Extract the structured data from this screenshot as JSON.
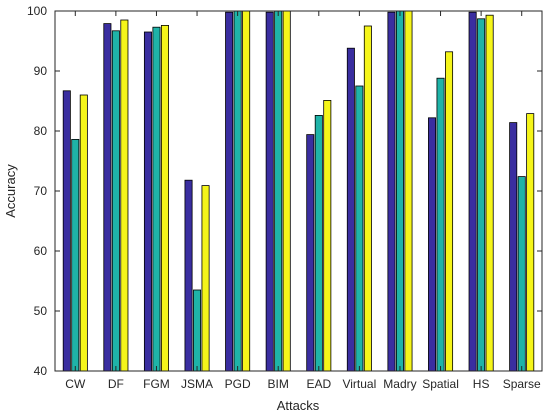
{
  "chart_data": {
    "type": "bar",
    "title": "",
    "xlabel": "Attacks",
    "ylabel": "Accuracy",
    "ylim": [
      40,
      100
    ],
    "yticks": [
      40,
      50,
      60,
      70,
      80,
      90,
      100
    ],
    "grid": false,
    "legend": "none",
    "categories": [
      "CW",
      "DF",
      "FGM",
      "JSMA",
      "PGD",
      "BIM",
      "EAD",
      "Virtual",
      "Madry",
      "Spatial",
      "HS",
      "Sparse"
    ],
    "series": [
      {
        "color": "#3a2ea0",
        "values": [
          86.7,
          97.9,
          96.5,
          71.8,
          99.8,
          99.8,
          79.4,
          93.8,
          99.8,
          82.2,
          99.8,
          81.4
        ]
      },
      {
        "color": "#1fb3a8",
        "values": [
          78.6,
          96.7,
          97.3,
          53.5,
          100,
          100,
          82.6,
          87.5,
          100,
          88.8,
          98.7,
          72.4
        ]
      },
      {
        "color": "#f5f51a",
        "values": [
          86.0,
          98.5,
          97.6,
          70.9,
          100,
          100,
          85.1,
          97.5,
          100,
          93.2,
          99.3,
          82.9
        ]
      }
    ]
  }
}
